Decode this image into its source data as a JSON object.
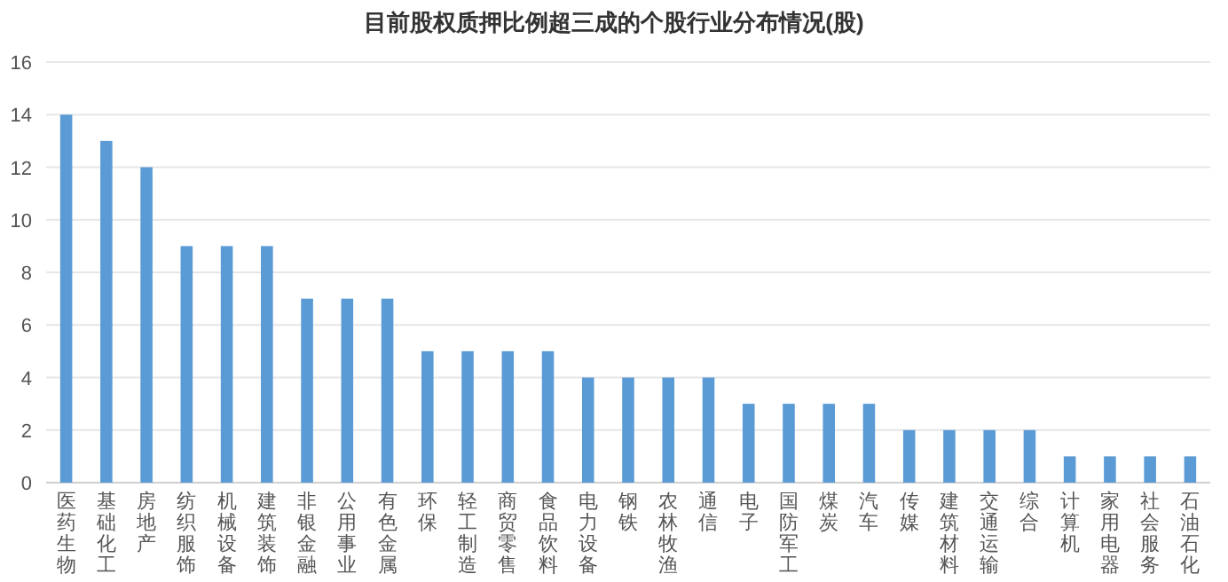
{
  "chart_data": {
    "type": "bar",
    "title": "目前股权质押比例超三成的个股行业分布情况(股)",
    "categories": [
      "医药生物",
      "基础化工",
      "房地产",
      "纺织服饰",
      "机械设备",
      "建筑装饰",
      "非银金融",
      "公用事业",
      "有色金属",
      "环保",
      "轻工制造",
      "商贸零售",
      "食品饮料",
      "电力设备",
      "钢铁",
      "农林牧渔",
      "通信",
      "电子",
      "国防军工",
      "煤炭",
      "汽车",
      "传媒",
      "建筑材料",
      "交通运输",
      "综合",
      "计算机",
      "家用电器",
      "社会服务",
      "石油石化"
    ],
    "values": [
      14,
      13,
      12,
      9,
      9,
      9,
      7,
      7,
      7,
      5,
      5,
      5,
      5,
      4,
      4,
      4,
      4,
      3,
      3,
      3,
      3,
      2,
      2,
      2,
      2,
      1,
      1,
      1,
      1
    ],
    "color": "#5b9bd5",
    "ylim": [
      0,
      16
    ],
    "yticks": [
      0,
      2,
      4,
      6,
      8,
      10,
      12,
      14,
      16
    ],
    "grid": "y"
  }
}
